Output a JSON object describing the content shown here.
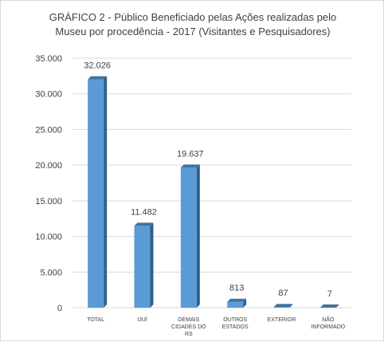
{
  "chart_data": {
    "type": "bar",
    "title_lines": [
      "GRÁFICO 2 - Público Beneficiado pelas Ações realizadas pelo",
      "Museu por procedência - 2017 (Visitantes e Pesquisadores)"
    ],
    "categories": [
      [
        "TOTAL"
      ],
      [
        "IJUÍ"
      ],
      [
        "DEMAIS",
        "CIDADES DO",
        "RS"
      ],
      [
        "OUTROS",
        "ESTADOS"
      ],
      [
        "EXTERIOR"
      ],
      [
        "NÃO",
        "INFORMADO"
      ]
    ],
    "values": [
      32026,
      11482,
      19637,
      813,
      87,
      7
    ],
    "data_labels": [
      "32.026",
      "11.482",
      "19.637",
      "813",
      "87",
      "7"
    ],
    "ylim": [
      0,
      35000
    ],
    "yticks": [
      0,
      5000,
      10000,
      15000,
      20000,
      25000,
      30000,
      35000
    ],
    "ytick_labels": [
      "0",
      "5.000",
      "10.000",
      "15.000",
      "20.000",
      "25.000",
      "30.000",
      "35.000"
    ],
    "grid": true,
    "bar_style": "3d",
    "colors": {
      "bar_front": "#5b9bd5",
      "bar_side": "#2e5f8f",
      "bar_top": "#41729f",
      "grid": "#d9d9d9",
      "text": "#404040"
    }
  }
}
